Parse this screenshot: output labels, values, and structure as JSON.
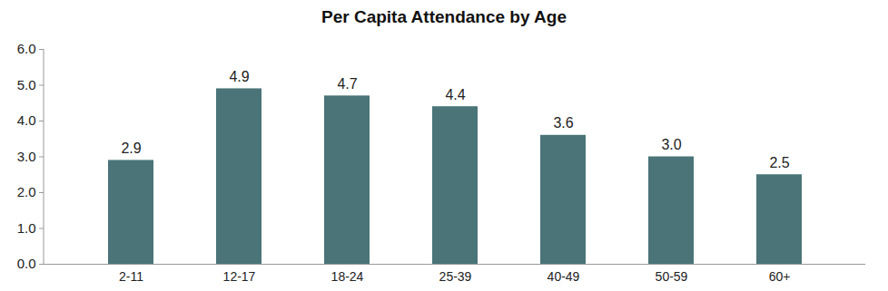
{
  "chart_data": {
    "type": "bar",
    "title": "Per Capita Attendance by Age",
    "categories": [
      "2-11",
      "12-17",
      "18-24",
      "25-39",
      "40-49",
      "50-59",
      "60+"
    ],
    "values": [
      2.9,
      4.9,
      4.7,
      4.4,
      3.6,
      3.0,
      2.5
    ],
    "value_labels": [
      "2.9",
      "4.9",
      "4.7",
      "4.4",
      "3.6",
      "3.0",
      "2.5"
    ],
    "color": "#4a7478",
    "ylim": [
      0,
      6
    ],
    "yticks": [
      {
        "value": 0,
        "label": "0.0"
      },
      {
        "value": 1,
        "label": "1.0"
      },
      {
        "value": 2,
        "label": "2.0"
      },
      {
        "value": 3,
        "label": "3.0"
      },
      {
        "value": 4,
        "label": "4.0"
      },
      {
        "value": 5,
        "label": "5.0"
      },
      {
        "value": 6,
        "label": "6.0"
      }
    ],
    "grid": false,
    "data_labels": true
  }
}
